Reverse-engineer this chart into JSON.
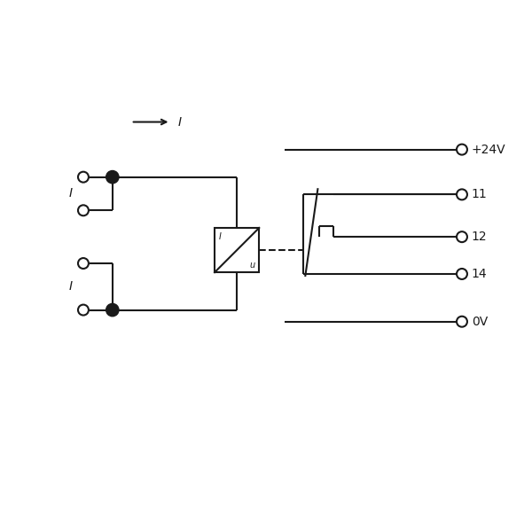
{
  "bg": "#ffffff",
  "lc": "#1a1a1a",
  "lw": 1.5,
  "right_labels": [
    "+24V",
    "11",
    "12",
    "14",
    "0V"
  ],
  "fig_size": [
    6.0,
    6.0
  ],
  "dpi": 100
}
